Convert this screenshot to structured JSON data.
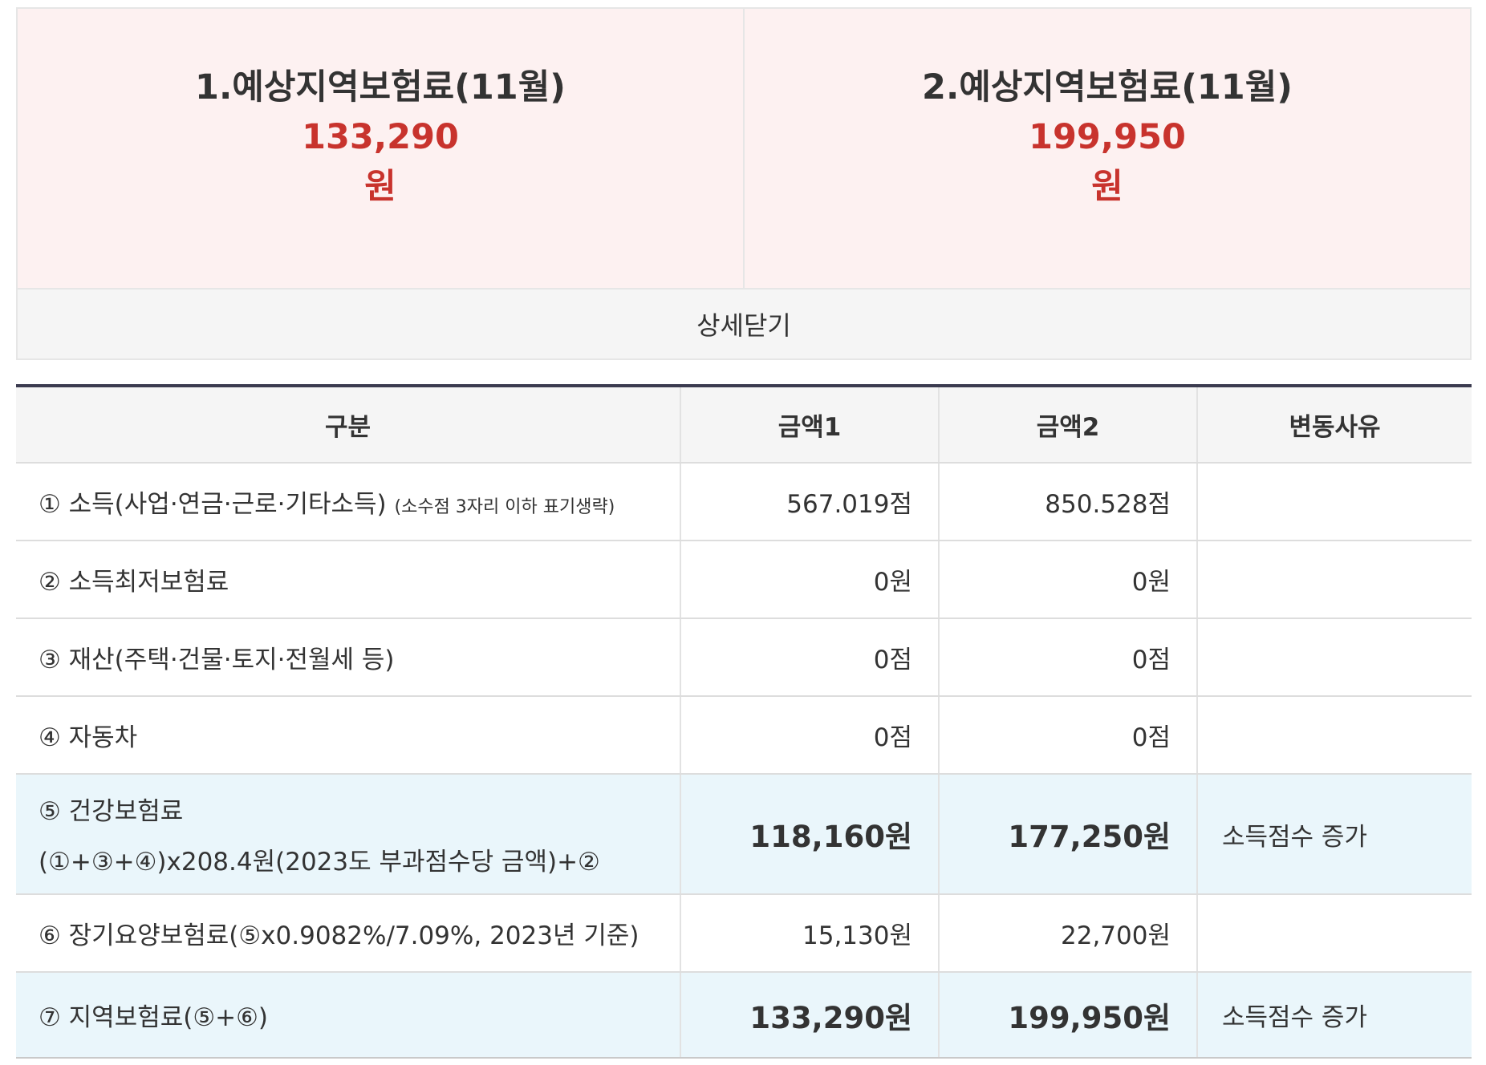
{
  "summary": [
    {
      "title": "1.예상지역보험료(11월)",
      "amount": "133,290",
      "unit": "원"
    },
    {
      "title": "2.예상지역보험료(11월)",
      "amount": "199,950",
      "unit": "원"
    }
  ],
  "detail_toggle_label": "상세닫기",
  "table": {
    "headers": [
      "구분",
      "금액1",
      "금액2",
      "변동사유"
    ],
    "rows": [
      {
        "category": "① 소득(사업·연금·근로·기타소득)",
        "note": "(소수점 3자리 이하 표기생략)",
        "amount1": "567.019점",
        "amount2": "850.528점",
        "reason": ""
      },
      {
        "category": "② 소득최저보험료",
        "amount1": "0원",
        "amount2": "0원",
        "reason": ""
      },
      {
        "category": "③ 재산(주택·건물·토지·전월세 등)",
        "amount1": "0점",
        "amount2": "0점",
        "reason": ""
      },
      {
        "category": "④ 자동차",
        "amount1": "0점",
        "amount2": "0점",
        "reason": ""
      },
      {
        "category": "⑤ 건강보험료",
        "category_line2": "(①+③+④)x208.4원(2023도 부과점수당 금액)+②",
        "amount1": "118,160원",
        "amount2": "177,250원",
        "reason": "소득점수 증가"
      },
      {
        "category": "⑥ 장기요양보험료(⑤x0.9082%/7.09%, 2023년 기준)",
        "amount1": "15,130원",
        "amount2": "22,700원",
        "reason": ""
      },
      {
        "category": "⑦ 지역보험료(⑤+⑥)",
        "amount1": "133,290원",
        "amount2": "199,950원",
        "reason": "소득점수 증가"
      }
    ]
  },
  "colors": {
    "summary_bg": "#fdf1f1",
    "amount_red": "#c8332d",
    "highlight_row_bg": "#eaf6fb",
    "table_top_border": "#3b3b4f"
  }
}
